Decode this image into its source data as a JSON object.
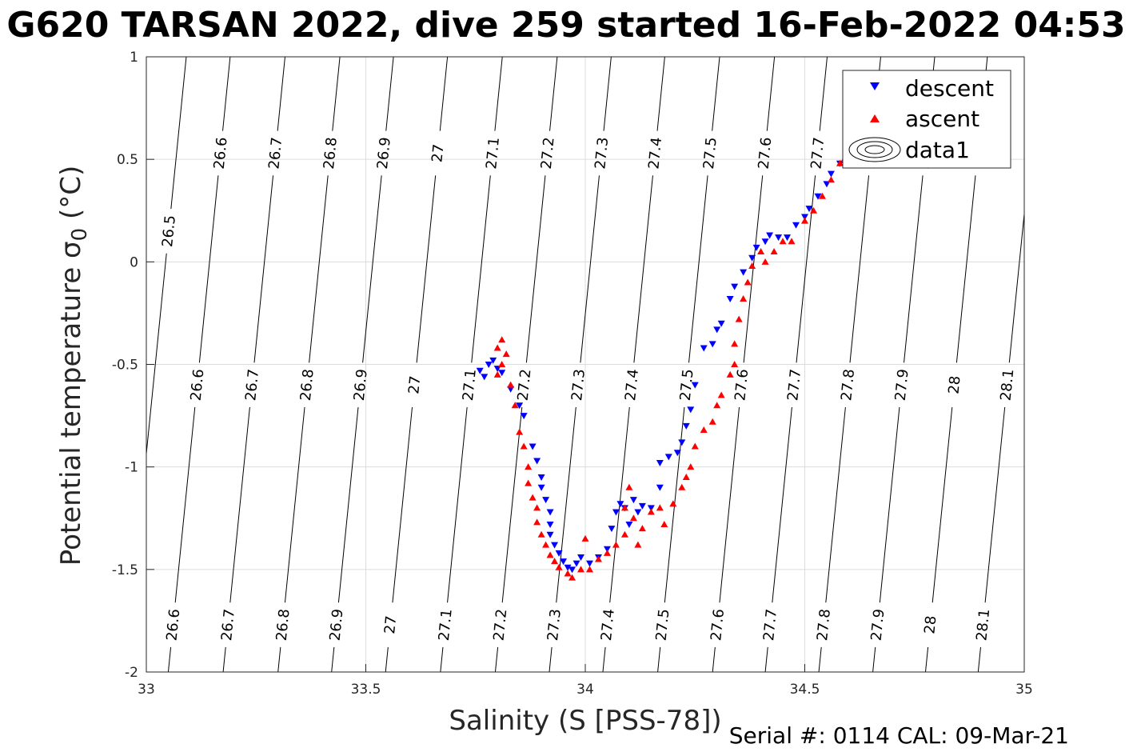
{
  "figure": {
    "title": "G620 TARSAN 2022, dive 259 started 16-Feb-2022 04:53",
    "serial": "Serial #: 0114  CAL: 09-Mar-21"
  },
  "chart_data": {
    "type": "scatter",
    "xlabel": "Salinity (S [PSS-78])",
    "ylabel_main": "Potential temperature σ",
    "ylabel_sub": "0",
    "ylabel_unit": " (°C)",
    "xlim": [
      33,
      35
    ],
    "ylim": [
      -2,
      1
    ],
    "xticks": [
      "33",
      "33.5",
      "34",
      "34.5",
      "35"
    ],
    "yticks": [
      "-2",
      "-1.5",
      "-1",
      "-0.5",
      "0",
      "0.5",
      "1"
    ],
    "grid": true,
    "legend_position": "top-right",
    "legend": [
      {
        "label": "descent",
        "marker": "triangle-down",
        "color": "#0000ff"
      },
      {
        "label": "ascent",
        "marker": "triangle-up",
        "color": "#ff0000"
      },
      {
        "label": "data1",
        "marker": "contour",
        "color": "#000000"
      }
    ],
    "contours": [
      {
        "label": "26.5",
        "x_bottom": 32.95,
        "slope": 0.047
      },
      {
        "label": "26.6",
        "x_bottom": 33.05,
        "slope": 0.047
      },
      {
        "label": "26.7",
        "x_bottom": 33.175,
        "slope": 0.047
      },
      {
        "label": "26.8",
        "x_bottom": 33.3,
        "slope": 0.047
      },
      {
        "label": "26.9",
        "x_bottom": 33.422,
        "slope": 0.047
      },
      {
        "label": "27",
        "x_bottom": 33.545,
        "slope": 0.047
      },
      {
        "label": "27.1",
        "x_bottom": 33.67,
        "slope": 0.047
      },
      {
        "label": "27.2",
        "x_bottom": 33.795,
        "slope": 0.047
      },
      {
        "label": "27.3",
        "x_bottom": 33.918,
        "slope": 0.047
      },
      {
        "label": "27.4",
        "x_bottom": 34.04,
        "slope": 0.047
      },
      {
        "label": "27.5",
        "x_bottom": 34.165,
        "slope": 0.047
      },
      {
        "label": "27.6",
        "x_bottom": 34.29,
        "slope": 0.047
      },
      {
        "label": "27.7",
        "x_bottom": 34.41,
        "slope": 0.047
      },
      {
        "label": "27.8",
        "x_bottom": 34.532,
        "slope": 0.047
      },
      {
        "label": "27.9",
        "x_bottom": 34.655,
        "slope": 0.047
      },
      {
        "label": "28",
        "x_bottom": 34.775,
        "slope": 0.047
      },
      {
        "label": "28.1",
        "x_bottom": 34.895,
        "slope": 0.047
      }
    ],
    "series": [
      {
        "name": "descent",
        "points": [
          [
            33.78,
            -0.5
          ],
          [
            33.76,
            -0.53
          ],
          [
            33.77,
            -0.56
          ],
          [
            33.79,
            -0.48
          ],
          [
            33.8,
            -0.52
          ],
          [
            33.81,
            -0.54
          ],
          [
            33.83,
            -0.62
          ],
          [
            33.85,
            -0.7
          ],
          [
            33.86,
            -0.75
          ],
          [
            33.88,
            -0.9
          ],
          [
            33.89,
            -0.97
          ],
          [
            33.9,
            -1.05
          ],
          [
            33.9,
            -1.1
          ],
          [
            33.91,
            -1.16
          ],
          [
            33.92,
            -1.22
          ],
          [
            33.92,
            -1.28
          ],
          [
            33.92,
            -1.33
          ],
          [
            33.93,
            -1.38
          ],
          [
            33.94,
            -1.42
          ],
          [
            33.95,
            -1.46
          ],
          [
            33.96,
            -1.49
          ],
          [
            33.97,
            -1.5
          ],
          [
            33.98,
            -1.47
          ],
          [
            33.99,
            -1.44
          ],
          [
            34.01,
            -1.47
          ],
          [
            34.03,
            -1.44
          ],
          [
            34.05,
            -1.4
          ],
          [
            34.06,
            -1.3
          ],
          [
            34.07,
            -1.22
          ],
          [
            34.08,
            -1.18
          ],
          [
            34.09,
            -1.2
          ],
          [
            34.1,
            -1.28
          ],
          [
            34.11,
            -1.16
          ],
          [
            34.12,
            -1.22
          ],
          [
            34.13,
            -1.19
          ],
          [
            34.15,
            -1.2
          ],
          [
            34.17,
            -1.1
          ],
          [
            34.17,
            -0.98
          ],
          [
            34.19,
            -0.95
          ],
          [
            34.21,
            -0.93
          ],
          [
            34.22,
            -0.88
          ],
          [
            34.23,
            -0.8
          ],
          [
            34.24,
            -0.72
          ],
          [
            34.25,
            -0.6
          ],
          [
            34.27,
            -0.42
          ],
          [
            34.29,
            -0.4
          ],
          [
            34.3,
            -0.33
          ],
          [
            34.31,
            -0.3
          ],
          [
            34.33,
            -0.18
          ],
          [
            34.34,
            -0.12
          ],
          [
            34.36,
            -0.05
          ],
          [
            34.38,
            0.02
          ],
          [
            34.39,
            0.07
          ],
          [
            34.41,
            0.1
          ],
          [
            34.42,
            0.13
          ],
          [
            34.44,
            0.12
          ],
          [
            34.46,
            0.12
          ],
          [
            34.48,
            0.18
          ],
          [
            34.5,
            0.22
          ],
          [
            34.51,
            0.26
          ],
          [
            34.53,
            0.32
          ],
          [
            34.55,
            0.38
          ],
          [
            34.56,
            0.43
          ],
          [
            34.58,
            0.48
          ],
          [
            34.6,
            0.5
          ]
        ]
      },
      {
        "name": "ascent",
        "points": [
          [
            33.8,
            -0.42
          ],
          [
            33.81,
            -0.38
          ],
          [
            33.82,
            -0.45
          ],
          [
            33.81,
            -0.5
          ],
          [
            33.8,
            -0.55
          ],
          [
            33.83,
            -0.6
          ],
          [
            33.84,
            -0.7
          ],
          [
            33.85,
            -0.83
          ],
          [
            33.86,
            -0.9
          ],
          [
            33.87,
            -1.0
          ],
          [
            33.87,
            -1.08
          ],
          [
            33.88,
            -1.15
          ],
          [
            33.89,
            -1.2
          ],
          [
            33.89,
            -1.27
          ],
          [
            33.9,
            -1.33
          ],
          [
            33.91,
            -1.38
          ],
          [
            33.92,
            -1.43
          ],
          [
            33.93,
            -1.46
          ],
          [
            33.94,
            -1.49
          ],
          [
            33.96,
            -1.52
          ],
          [
            33.97,
            -1.54
          ],
          [
            33.99,
            -1.5
          ],
          [
            34.0,
            -1.35
          ],
          [
            34.01,
            -1.5
          ],
          [
            34.03,
            -1.45
          ],
          [
            34.05,
            -1.42
          ],
          [
            34.07,
            -1.38
          ],
          [
            34.09,
            -1.33
          ],
          [
            34.09,
            -1.2
          ],
          [
            34.1,
            -1.1
          ],
          [
            34.11,
            -1.25
          ],
          [
            34.12,
            -1.38
          ],
          [
            34.13,
            -1.3
          ],
          [
            34.15,
            -1.22
          ],
          [
            34.17,
            -1.2
          ],
          [
            34.18,
            -1.28
          ],
          [
            34.2,
            -1.18
          ],
          [
            34.22,
            -1.1
          ],
          [
            34.23,
            -1.05
          ],
          [
            34.24,
            -1.0
          ],
          [
            34.25,
            -0.9
          ],
          [
            34.27,
            -0.82
          ],
          [
            34.29,
            -0.78
          ],
          [
            34.3,
            -0.7
          ],
          [
            34.31,
            -0.65
          ],
          [
            34.33,
            -0.55
          ],
          [
            34.34,
            -0.5
          ],
          [
            34.34,
            -0.4
          ],
          [
            34.35,
            -0.28
          ],
          [
            34.36,
            -0.18
          ],
          [
            34.37,
            -0.1
          ],
          [
            34.38,
            -0.02
          ],
          [
            34.4,
            0.05
          ],
          [
            34.41,
            0.0
          ],
          [
            34.43,
            0.05
          ],
          [
            34.45,
            0.1
          ],
          [
            34.47,
            0.1
          ],
          [
            34.5,
            0.2
          ],
          [
            34.52,
            0.25
          ],
          [
            34.54,
            0.32
          ],
          [
            34.56,
            0.4
          ],
          [
            34.58,
            0.48
          ],
          [
            34.59,
            0.5
          ]
        ]
      }
    ]
  }
}
